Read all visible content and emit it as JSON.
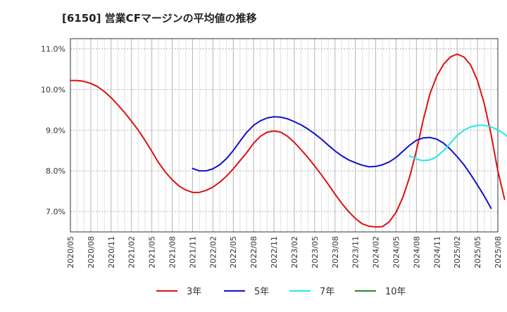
{
  "chart_data": {
    "type": "line",
    "title": "[6150]  営業CFマージンの平均値の推移",
    "xlabel": "",
    "ylabel": "",
    "ylim": [
      6.5,
      11.25
    ],
    "yticks": [
      7.0,
      8.0,
      9.0,
      10.0,
      11.0
    ],
    "ytick_labels": [
      "7.0%",
      "8.0%",
      "9.0%",
      "10.0%",
      "11.0%"
    ],
    "x_categories": [
      "2020/05",
      "2020/08",
      "2020/11",
      "2021/02",
      "2021/05",
      "2021/08",
      "2021/11",
      "2022/02",
      "2022/05",
      "2022/08",
      "2022/11",
      "2023/02",
      "2023/05",
      "2023/08",
      "2023/11",
      "2024/02",
      "2024/05",
      "2024/08",
      "2024/11",
      "2025/02",
      "2025/05",
      "2025/08"
    ],
    "grid": true,
    "legend_position": "bottom",
    "series": [
      {
        "name": "3年",
        "color": "#dd1111",
        "start_index": 0,
        "values": [
          10.22,
          10.22,
          10.2,
          10.15,
          10.07,
          9.95,
          9.8,
          9.62,
          9.43,
          9.22,
          9.0,
          8.75,
          8.48,
          8.2,
          7.97,
          7.78,
          7.63,
          7.53,
          7.47,
          7.47,
          7.52,
          7.6,
          7.72,
          7.87,
          8.05,
          8.25,
          8.45,
          8.68,
          8.85,
          8.95,
          8.98,
          8.95,
          8.85,
          8.7,
          8.52,
          8.33,
          8.12,
          7.9,
          7.67,
          7.43,
          7.2,
          7.0,
          6.83,
          6.7,
          6.64,
          6.62,
          6.63,
          6.75,
          6.98,
          7.35,
          7.85,
          8.5,
          9.25,
          9.9,
          10.33,
          10.62,
          10.8,
          10.87,
          10.8,
          10.6,
          10.22,
          9.65,
          8.9,
          8.0,
          7.3
        ]
      },
      {
        "name": "5年",
        "color": "#1111cc",
        "start_index": 18,
        "values": [
          8.06,
          8.0,
          8.0,
          8.05,
          8.15,
          8.3,
          8.5,
          8.73,
          8.95,
          9.12,
          9.23,
          9.3,
          9.33,
          9.32,
          9.28,
          9.21,
          9.13,
          9.03,
          8.91,
          8.78,
          8.63,
          8.49,
          8.37,
          8.27,
          8.2,
          8.14,
          8.1,
          8.11,
          8.15,
          8.22,
          8.33,
          8.48,
          8.63,
          8.75,
          8.81,
          8.82,
          8.78,
          8.68,
          8.53,
          8.35,
          8.15,
          7.91,
          7.65,
          7.38,
          7.08
        ]
      },
      {
        "name": "7年",
        "color": "#22e8e8",
        "start_index": 50,
        "values": [
          8.37,
          8.29,
          8.25,
          8.27,
          8.35,
          8.5,
          8.68,
          8.87,
          9.0,
          9.08,
          9.12,
          9.12,
          9.08,
          9.01,
          8.9,
          8.76,
          8.58,
          8.38,
          8.12
        ]
      },
      {
        "name": "10年",
        "color": "#228822",
        "start_index": 0,
        "values": []
      }
    ]
  }
}
